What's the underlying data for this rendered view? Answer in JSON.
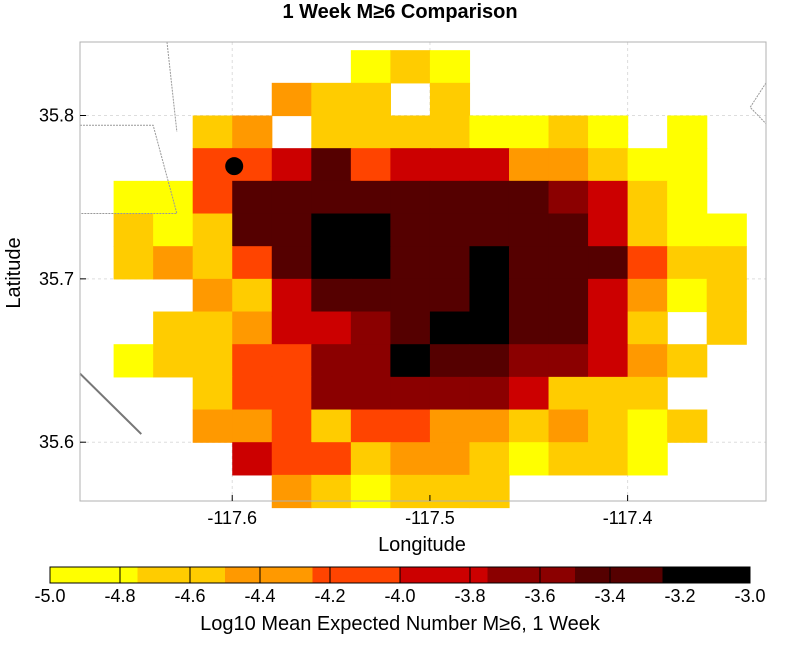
{
  "chart_data": {
    "type": "heatmap",
    "title": "1 Week M≥6 Comparison",
    "xlabel": "Longitude",
    "ylabel": "Latitude",
    "colorbar_label": "Log10 Mean Expected Number M≥6, 1 Week",
    "xlim": [
      -117.677,
      -117.33
    ],
    "ylim": [
      35.564,
      35.845
    ],
    "x_ticks": [
      -117.6,
      -117.5,
      -117.4
    ],
    "x_tick_labels": [
      "-117.6",
      "-117.5",
      "-117.4"
    ],
    "y_ticks": [
      35.6,
      35.7,
      35.8
    ],
    "y_tick_labels": [
      "35.6",
      "35.7",
      "35.8"
    ],
    "grid": true,
    "cell_size_deg": 0.02,
    "x_centers": [
      -117.65,
      -117.63,
      -117.61,
      -117.59,
      -117.57,
      -117.55,
      -117.53,
      -117.51,
      -117.49,
      -117.47,
      -117.45,
      -117.43,
      -117.41,
      -117.39,
      -117.37,
      -117.35
    ],
    "y_centers": [
      35.83,
      35.81,
      35.79,
      35.77,
      35.75,
      35.73,
      35.71,
      35.69,
      35.67,
      35.65,
      35.63,
      35.61,
      35.59,
      35.57
    ],
    "values": [
      [
        null,
        null,
        null,
        null,
        null,
        null,
        -4.9,
        -4.7,
        -4.9,
        null,
        null,
        null,
        null,
        null,
        null,
        null
      ],
      [
        null,
        null,
        null,
        null,
        -4.5,
        -4.7,
        -4.7,
        null,
        -4.7,
        null,
        null,
        null,
        null,
        null,
        null,
        null
      ],
      [
        null,
        null,
        -4.7,
        -4.5,
        null,
        -4.7,
        -4.7,
        -4.7,
        -4.7,
        -4.9,
        -4.9,
        -4.7,
        -4.9,
        null,
        -4.9,
        null
      ],
      [
        null,
        null,
        -4.1,
        -4.1,
        -3.9,
        -3.5,
        -4.1,
        -3.9,
        -3.9,
        -3.9,
        -4.3,
        -4.3,
        -4.7,
        -4.9,
        -4.9,
        null
      ],
      [
        -4.9,
        -4.9,
        -4.1,
        -3.5,
        -3.3,
        -3.3,
        -3.5,
        -3.3,
        -3.5,
        -3.5,
        -3.5,
        -3.7,
        -3.9,
        -4.7,
        -4.9,
        null
      ],
      [
        -4.7,
        -4.9,
        -4.7,
        -3.5,
        -3.3,
        -3.1,
        -3.1,
        -3.3,
        -3.3,
        -3.5,
        -3.5,
        -3.5,
        -3.9,
        -4.7,
        -4.9,
        -4.9
      ],
      [
        -4.7,
        -4.5,
        -4.7,
        -4.1,
        -3.5,
        -3.1,
        -3.1,
        -3.3,
        -3.3,
        -3.1,
        -3.3,
        -3.3,
        -3.5,
        -4.1,
        -4.7,
        -4.7
      ],
      [
        null,
        null,
        -4.5,
        -4.7,
        -3.9,
        -3.5,
        -3.5,
        -3.3,
        -3.3,
        -3.1,
        -3.3,
        -3.3,
        -3.9,
        -4.5,
        -4.9,
        -4.7
      ],
      [
        null,
        -4.7,
        -4.7,
        -4.5,
        -3.9,
        -3.9,
        -3.7,
        -3.3,
        -3.1,
        -3.1,
        -3.3,
        -3.5,
        -3.9,
        -4.7,
        null,
        -4.7
      ],
      [
        -4.9,
        -4.7,
        -4.7,
        -4.1,
        -4.1,
        -3.7,
        -3.7,
        -3.1,
        -3.5,
        -3.5,
        -3.7,
        -3.7,
        -3.9,
        -4.5,
        -4.7,
        null
      ],
      [
        null,
        null,
        -4.7,
        -4.1,
        -4.1,
        -3.7,
        -3.7,
        -3.7,
        -3.7,
        -3.7,
        -3.9,
        -4.7,
        -4.7,
        -4.7,
        null,
        null
      ],
      [
        null,
        null,
        -4.5,
        -4.5,
        -4.1,
        -4.7,
        -4.1,
        -4.1,
        -4.5,
        -4.5,
        -4.7,
        -4.5,
        -4.7,
        -4.9,
        -4.7,
        null
      ],
      [
        null,
        null,
        null,
        -3.9,
        -4.1,
        -4.1,
        -4.7,
        -4.5,
        -4.5,
        -4.7,
        -4.9,
        -4.7,
        -4.7,
        -4.9,
        null,
        null
      ],
      [
        null,
        null,
        null,
        null,
        -4.5,
        -4.7,
        -4.9,
        -4.7,
        -4.7,
        -4.7,
        null,
        null,
        null,
        null,
        null,
        null
      ]
    ],
    "colorbar": {
      "ticks": [
        -5.0,
        -4.8,
        -4.6,
        -4.4,
        -4.2,
        -4.0,
        -3.8,
        -3.6,
        -3.4,
        -3.2,
        -3.0
      ],
      "tick_labels": [
        "-5.0",
        "-4.8",
        "-4.6",
        "-4.4",
        "-4.2",
        "-4.0",
        "-3.8",
        "-3.6",
        "-3.4",
        "-3.2",
        "-3.0"
      ],
      "bins": [
        {
          "min": -5.0,
          "max": -4.75,
          "color": "#ffff00"
        },
        {
          "min": -4.75,
          "max": -4.5,
          "color": "#ffcc00"
        },
        {
          "min": -4.5,
          "max": -4.25,
          "color": "#ff9900"
        },
        {
          "min": -4.25,
          "max": -4.0,
          "color": "#ff4400"
        },
        {
          "min": -4.0,
          "max": -3.75,
          "color": "#cc0000"
        },
        {
          "min": -3.75,
          "max": -3.5,
          "color": "#8b0000"
        },
        {
          "min": -3.5,
          "max": -3.25,
          "color": "#550000"
        },
        {
          "min": -3.25,
          "max": -3.0,
          "color": "#000000"
        }
      ]
    },
    "marker": {
      "lon": -117.599,
      "lat": 35.769
    },
    "fault_lines": [
      [
        [
          -117.677,
          35.794
        ],
        [
          -117.64,
          35.794
        ],
        [
          -117.628,
          35.74
        ],
        [
          -117.677,
          35.74
        ]
      ],
      [
        [
          -117.633,
          35.845
        ],
        [
          -117.628,
          35.79
        ]
      ],
      [
        [
          -117.677,
          35.642
        ],
        [
          -117.646,
          35.605
        ]
      ],
      [
        [
          -117.33,
          35.82
        ],
        [
          -117.338,
          35.805
        ],
        [
          -117.33,
          35.795
        ]
      ]
    ]
  }
}
